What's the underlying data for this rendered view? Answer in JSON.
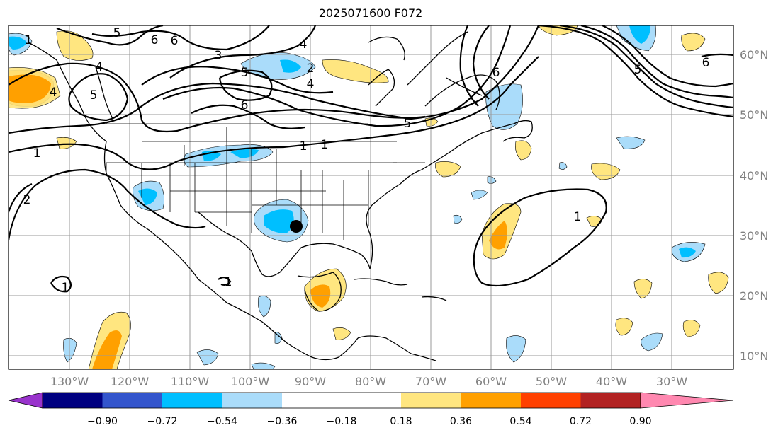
{
  "title": "2025071600 F072",
  "colors": {
    "land_outline": "#000000",
    "grid": "#9a9a9a",
    "contour": "#000000",
    "marker": "#000000"
  },
  "lon_labels": [
    "130°W",
    "120°W",
    "110°W",
    "100°W",
    "90°W",
    "80°W",
    "70°W",
    "60°W",
    "50°W",
    "40°W",
    "30°W"
  ],
  "lat_labels": [
    "60°N",
    "50°N",
    "40°N",
    "30°N",
    "20°N",
    "10°N"
  ],
  "colorbar": {
    "colors": [
      "#9933cc",
      "#000080",
      "#3355cc",
      "#00bfff",
      "#aadcfa",
      "#ffffff",
      "#ffe680",
      "#ffa000",
      "#ff4000",
      "#b22222",
      "#ff88b0"
    ],
    "tick_labels": [
      "−0.90",
      "−0.72",
      "−0.54",
      "−0.36",
      "−0.18",
      "0.18",
      "0.36",
      "0.54",
      "0.72",
      "0.90"
    ]
  },
  "contour_labels": [
    "1",
    "5",
    "6",
    "4",
    "3",
    "1",
    "4",
    "5",
    "6",
    "4",
    "5",
    "2",
    "6",
    "5",
    "6",
    "4",
    "5",
    "1",
    "6",
    "1",
    "1",
    "2",
    "1",
    "1"
  ],
  "features": {
    "marker": "storm-center-marker"
  }
}
